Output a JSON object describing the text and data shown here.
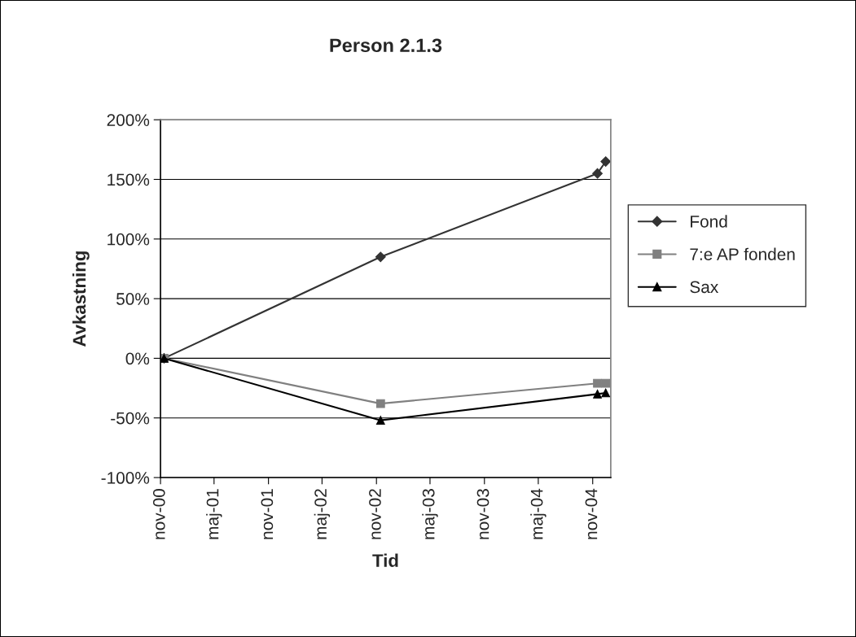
{
  "chart_data": {
    "type": "line",
    "title": "Person 2.1.3",
    "xlabel": "Tid",
    "ylabel": "Avkastning",
    "x": [
      "2000-11-13",
      "2002-11-15",
      "2004-11-17",
      "2004-12-15"
    ],
    "series": [
      {
        "name": "Fond",
        "color": "#333333",
        "marker": "diamond",
        "values": [
          0,
          85,
          155,
          165
        ]
      },
      {
        "name": "7:e AP fonden",
        "color": "#808080",
        "marker": "square",
        "values": [
          0,
          -38,
          -21,
          -21
        ]
      },
      {
        "name": "Sax",
        "color": "#000000",
        "marker": "triangle",
        "values": [
          0,
          -52,
          -30,
          -29
        ]
      }
    ],
    "xlim": [
      "2000-11-01",
      "2005-01-01"
    ],
    "xticks": [
      {
        "value": "2000-11-01",
        "label": "nov-00"
      },
      {
        "value": "2001-05-01",
        "label": "maj-01"
      },
      {
        "value": "2001-11-01",
        "label": "nov-01"
      },
      {
        "value": "2002-05-01",
        "label": "maj-02"
      },
      {
        "value": "2002-11-01",
        "label": "nov-02"
      },
      {
        "value": "2003-05-01",
        "label": "maj-03"
      },
      {
        "value": "2003-11-01",
        "label": "nov-03"
      },
      {
        "value": "2004-05-01",
        "label": "maj-04"
      },
      {
        "value": "2004-11-01",
        "label": "nov-04"
      }
    ],
    "ylim": [
      -100,
      200
    ],
    "yticks": [
      {
        "value": -100,
        "label": "-100%"
      },
      {
        "value": -50,
        "label": "-50%"
      },
      {
        "value": 0,
        "label": "0%"
      },
      {
        "value": 50,
        "label": "50%"
      },
      {
        "value": 100,
        "label": "100%"
      },
      {
        "value": 150,
        "label": "150%"
      },
      {
        "value": 200,
        "label": "200%"
      }
    ],
    "grid": "y",
    "legend": "right",
    "line_style": "solid"
  }
}
